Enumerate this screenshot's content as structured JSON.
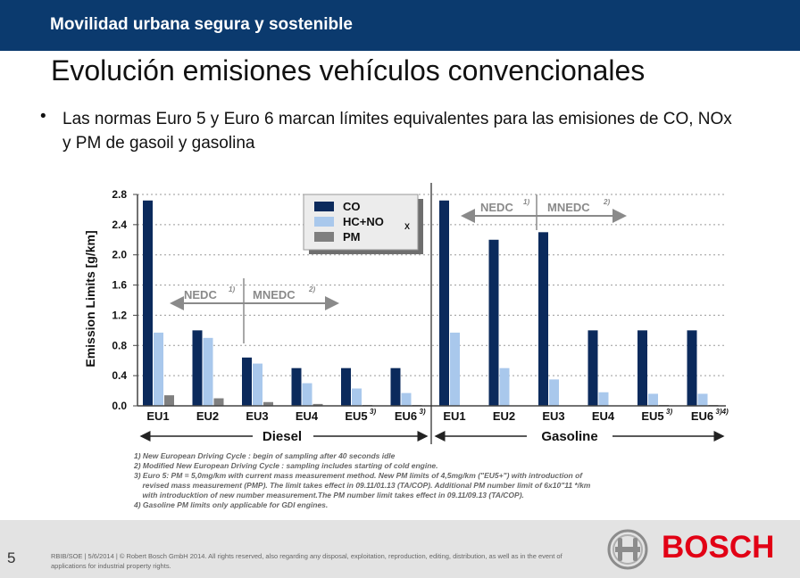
{
  "header": {
    "section": "Movilidad urbana segura y sostenible"
  },
  "slide": {
    "title": "Evolución emisiones vehículos convencionales",
    "bullet_mark": "•",
    "bullet": "Las normas Euro 5 y Euro 6 marcan límites equivalentes para las emisiones de CO, NOx y PM de gasoil y gasolina"
  },
  "footer": {
    "page": "5",
    "copyright": "RBIB/SOE | 5/6/2014 | © Robert Bosch GmbH 2014. All rights reserved, also regarding any disposal, exploitation, reproduction, editing, distribution, as well as in the event of applications for industrial property rights.",
    "brand": "BOSCH"
  },
  "chart_data": {
    "type": "bar",
    "ylabel": "Emission Limits [g/km]",
    "ylim": [
      0,
      2.8
    ],
    "yticks": [
      "0.0",
      "0.4",
      "0.8",
      "1.2",
      "1.6",
      "2.0",
      "2.4",
      "2.8"
    ],
    "categories": [
      "EU1",
      "EU2",
      "EU3",
      "EU4",
      "EU5",
      "EU6",
      "EU1",
      "EU2",
      "EU3",
      "EU4",
      "EU5",
      "EU6"
    ],
    "category_superscripts": [
      "",
      "",
      "",
      "",
      "3)",
      "3)",
      "",
      "",
      "",
      "",
      "3)",
      "3)4)"
    ],
    "groups": [
      {
        "name": "Diesel",
        "from": 0,
        "to": 5
      },
      {
        "name": "Gasoline",
        "from": 6,
        "to": 11
      }
    ],
    "series": [
      {
        "name": "CO",
        "color": "#0b2a5c",
        "values": [
          2.72,
          1.0,
          0.64,
          0.5,
          0.5,
          0.5,
          2.72,
          2.2,
          2.3,
          1.0,
          1.0,
          1.0
        ]
      },
      {
        "name": "HC+NOx",
        "color": "#a9c8ec",
        "values": [
          0.97,
          0.9,
          0.56,
          0.3,
          0.23,
          0.17,
          0.97,
          0.5,
          0.35,
          0.18,
          0.16,
          0.16
        ]
      },
      {
        "name": "PM",
        "color": "#7f7f7f",
        "values": [
          0.14,
          0.1,
          0.05,
          0.025,
          0.005,
          0.005,
          0,
          0,
          0,
          0,
          0.005,
          0.005
        ]
      }
    ],
    "legend_series_labels": [
      "CO",
      "HC+NO",
      "PM"
    ],
    "legend_subscript": "X",
    "legend_position": "top-left",
    "cycle_annotations": {
      "nedc": "NEDC",
      "nedc_sup": "1)",
      "mnedc": "MNEDC",
      "mnedc_sup": "2)"
    },
    "footnotes": [
      "1) New European Driving Cycle : begin of sampling after 40 seconds idle",
      "2) Modified New European Driving Cycle : sampling includes starting of  cold engine.",
      "3) Euro 5: PM = 5,0mg/km with current mass measurement method. New PM limits of 4,5mg/km (\"EU5+\") with introduction of",
      "    revised mass measurement (PMP). The limit takes effect in 09.11/01.13 (TA/COP). Additional PM number limit of 6x10\"11 */km",
      "    with introducktion of new number measurement.The PM number limit takes effect in 09.11/09.13 (TA/COP).",
      "4) Gasoline PM limits only applicable for GDI engines."
    ],
    "grid": true
  }
}
